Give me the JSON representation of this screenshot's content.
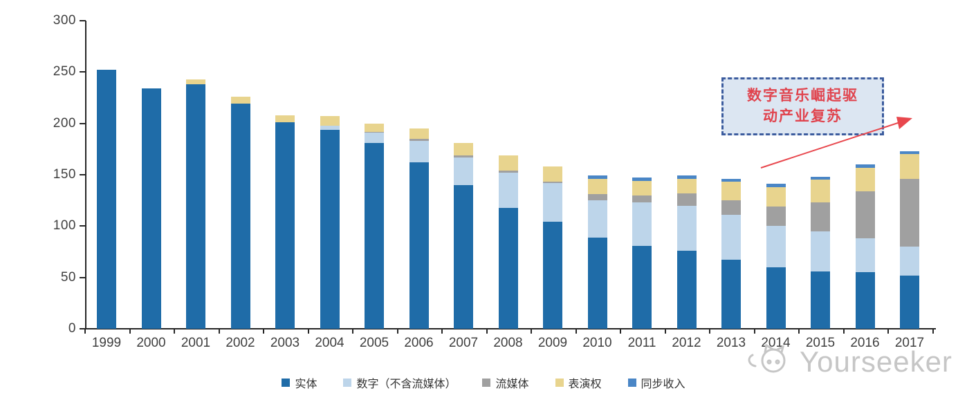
{
  "chart_data": {
    "type": "bar",
    "stacked": true,
    "title": "",
    "xlabel": "",
    "ylabel": "",
    "ylim": [
      0,
      300
    ],
    "yticks": [
      0,
      50,
      100,
      150,
      200,
      250,
      300
    ],
    "grid": false,
    "legend_position": "bottom",
    "categories": [
      "1999",
      "2000",
      "2001",
      "2002",
      "2003",
      "2004",
      "2005",
      "2006",
      "2007",
      "2008",
      "2009",
      "2010",
      "2011",
      "2012",
      "2013",
      "2014",
      "2015",
      "2016",
      "2017"
    ],
    "series": [
      {
        "name": "实体",
        "color": "#1F6CA8",
        "values": [
          252,
          234,
          238,
          219,
          201,
          194,
          181,
          162,
          140,
          118,
          104,
          89,
          81,
          76,
          67,
          60,
          56,
          55,
          52
        ]
      },
      {
        "name": "数字（不含流媒体）",
        "color": "#BDD5EA",
        "values": [
          0,
          0,
          0,
          0,
          0,
          4,
          10,
          21,
          27,
          34,
          38,
          36,
          42,
          44,
          44,
          40,
          39,
          33,
          28
        ]
      },
      {
        "name": "流媒体",
        "color": "#A0A0A0",
        "values": [
          0,
          0,
          0,
          0,
          0,
          0,
          1,
          2,
          2,
          2,
          1,
          6,
          7,
          12,
          14,
          19,
          28,
          46,
          66
        ]
      },
      {
        "name": "表演权",
        "color": "#E8D48E",
        "values": [
          0,
          0,
          5,
          7,
          7,
          9,
          8,
          10,
          12,
          15,
          15,
          15,
          14,
          14,
          18,
          19,
          22,
          23,
          24
        ]
      },
      {
        "name": "同步收入",
        "color": "#4A86C6",
        "values": [
          0,
          0,
          0,
          0,
          0,
          0,
          0,
          0,
          0,
          0,
          0,
          3,
          3,
          3,
          3,
          3,
          3,
          3,
          3
        ]
      }
    ]
  },
  "annotation": {
    "line1": "数字音乐崛起驱",
    "line2": "动产业复苏",
    "text_color": "#e0444e",
    "box_fill": "#dce6f2",
    "box_border": "#3c5c9e",
    "arrow_color": "#e8474d"
  },
  "watermark": {
    "text": "Yourseeker",
    "color": "#c6c6c6"
  }
}
